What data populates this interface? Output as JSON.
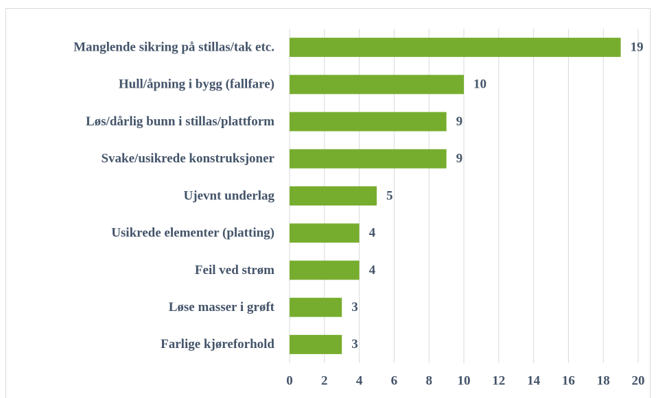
{
  "chart_data": {
    "type": "barh",
    "categories": [
      "Manglende sikring på stillas/tak etc.",
      "Hull/åpning i bygg (fallfare)",
      "Løs/dårlig bunn i stillas/plattform",
      "Svake/usikrede konstruksjoner",
      "Ujevnt underlag",
      "Usikrede elementer (platting)",
      "Feil ved strøm",
      "Løse masser i grøft",
      "Farlige kjøreforhold"
    ],
    "values": [
      19,
      10,
      9,
      9,
      5,
      4,
      4,
      3,
      3
    ],
    "color": "#77ad2e",
    "xlim": [
      0,
      20
    ],
    "xticks": [
      0,
      2,
      4,
      6,
      8,
      10,
      12,
      14,
      16,
      18,
      20
    ],
    "grid": true
  }
}
